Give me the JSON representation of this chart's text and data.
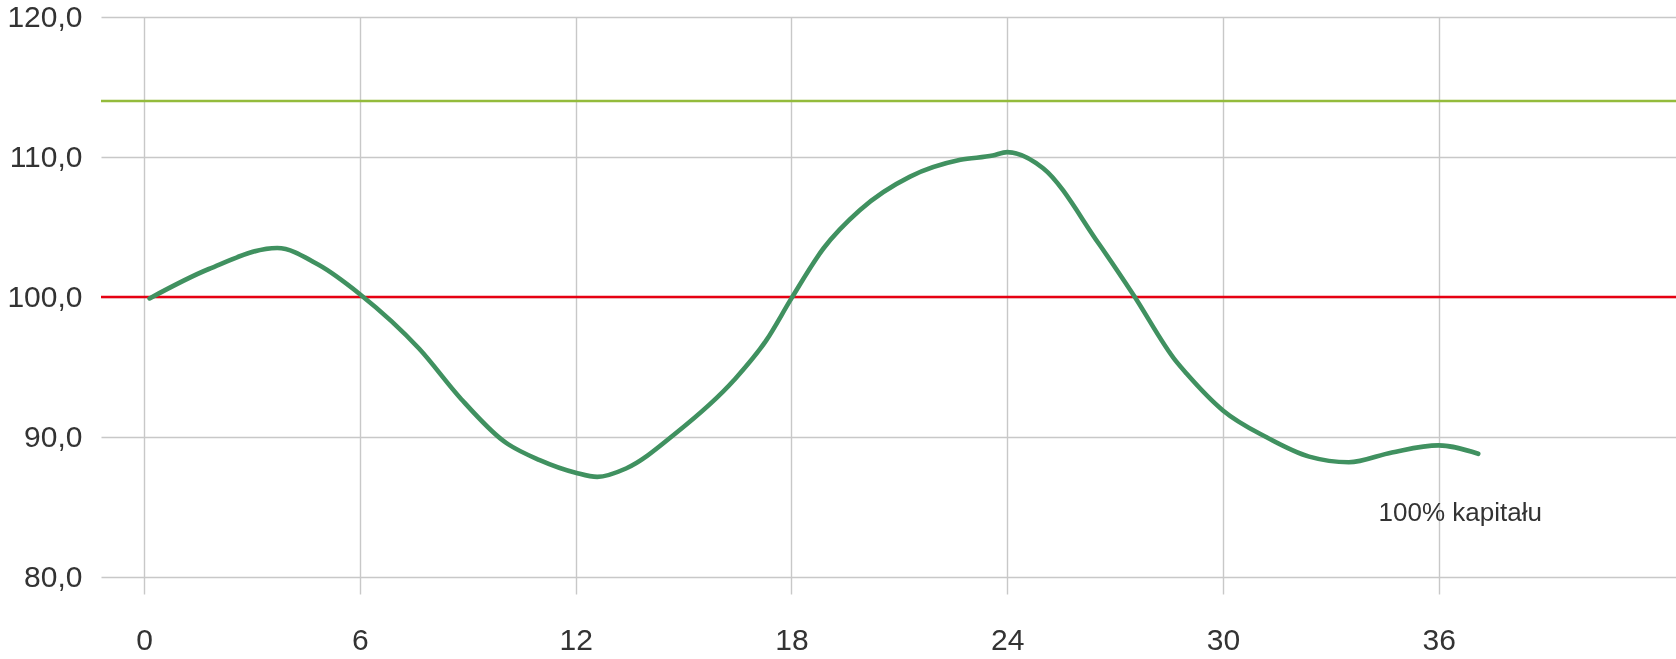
{
  "chart_data": {
    "type": "line",
    "x": [
      0.15,
      1.8,
      3.7,
      4.85,
      6.0,
      7.65,
      8.82,
      10.0,
      11.0,
      12.0,
      12.6,
      13.4,
      14.8,
      16.4,
      17.3,
      18.0,
      18.9,
      19.9,
      21.3,
      22.7,
      23.6,
      24.0,
      25.0,
      26.55,
      27.5,
      28.7,
      29.0,
      30.0,
      31.2,
      32.4,
      33.5,
      34.7,
      36.0,
      37.1
    ],
    "series": [
      {
        "name": "100% kapitału",
        "color": "#409160",
        "values": [
          99.9,
          102.0,
          103.5,
          102.3,
          100.2,
          96.3,
          92.7,
          89.7,
          88.35,
          87.45,
          87.15,
          87.75,
          90.3,
          94.05,
          96.9,
          99.9,
          103.5,
          106.2,
          108.6,
          109.8,
          110.1,
          110.35,
          109.2,
          103.8,
          100.2,
          95.4,
          94.5,
          91.9,
          90.0,
          88.6,
          88.2,
          88.9,
          89.4,
          88.8
        ]
      }
    ],
    "xlim": [
      -1.2,
      42.6
    ],
    "ylim": [
      80,
      120
    ],
    "xticks": [
      0,
      6,
      12,
      18,
      24,
      30,
      36
    ],
    "yticks": [
      {
        "value": 80,
        "label": "80,0"
      },
      {
        "value": 90,
        "label": "90,0"
      },
      {
        "value": 100,
        "label": "100,0"
      },
      {
        "value": 110,
        "label": "110,0"
      },
      {
        "value": 120,
        "label": "120,0"
      }
    ],
    "ref_lines": [
      {
        "axis": "y",
        "value": 114,
        "color": "#94bb3c"
      },
      {
        "axis": "y",
        "value": 100,
        "color": "#e60012"
      }
    ],
    "grid": true,
    "line_style": "solid"
  }
}
